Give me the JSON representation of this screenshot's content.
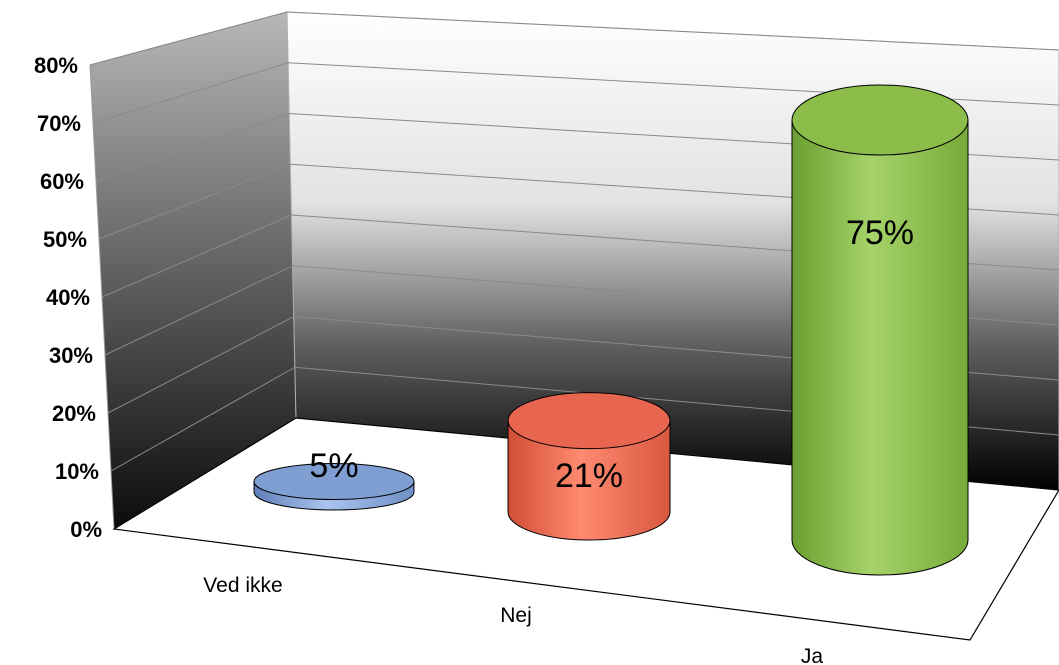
{
  "chart_data": {
    "type": "bar",
    "style": "3d-cylinder",
    "categories": [
      "Ved ikke",
      "Nej",
      "Ja"
    ],
    "values": [
      5,
      21,
      75
    ],
    "data_labels": [
      "5%",
      "21%",
      "75%"
    ],
    "colors": [
      "#7f9fd2",
      "#e86650",
      "#8cbc4a"
    ],
    "ylim": [
      0,
      80
    ],
    "yticks": [
      "0%",
      "10%",
      "20%",
      "30%",
      "40%",
      "50%",
      "60%",
      "70%",
      "80%"
    ],
    "grid": true,
    "legend": "none",
    "title": "",
    "xlabel": "",
    "ylabel": ""
  }
}
